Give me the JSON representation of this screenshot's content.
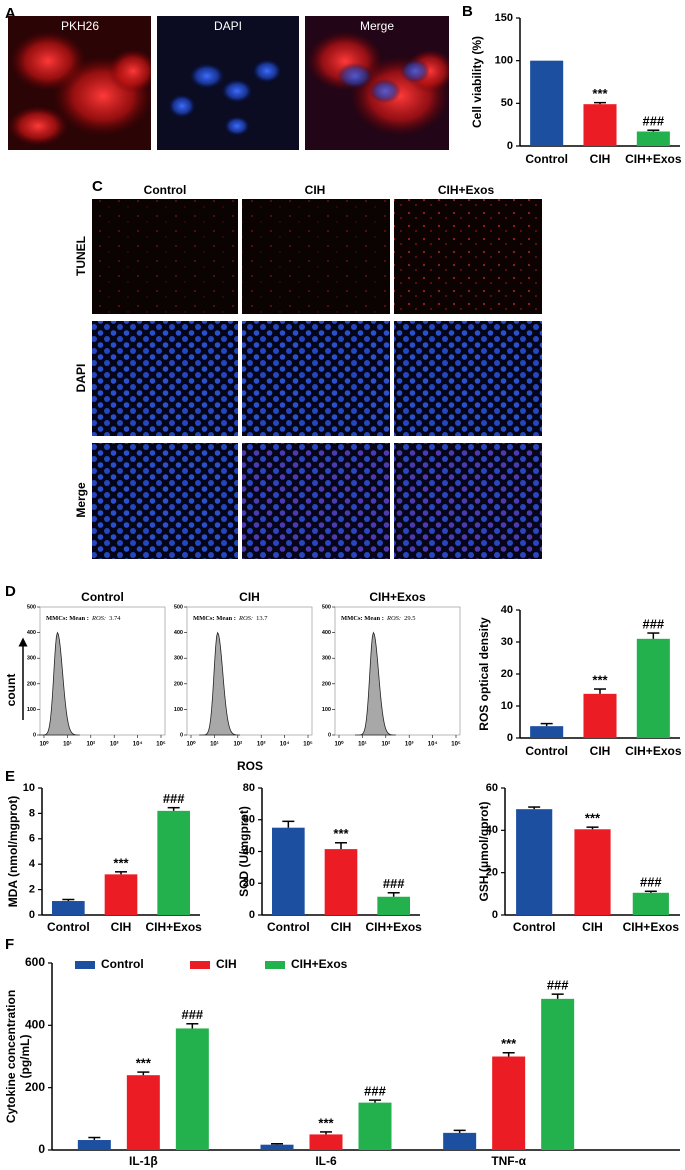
{
  "panel_labels": [
    "A",
    "B",
    "C",
    "D",
    "E",
    "F"
  ],
  "figure_a": {
    "labels": [
      "PKH26",
      "DAPI",
      "Merge"
    ]
  },
  "figure_c": {
    "columns": [
      "Control",
      "CIH",
      "CIH+Exos"
    ],
    "rows": [
      "TUNEL",
      "DAPI",
      "Merge"
    ]
  },
  "figure_d": {
    "xlabel": "ROS",
    "ylabel": "count"
  },
  "chart_data": [
    {
      "type": "bar",
      "ylabel": "Cell viability (%)",
      "categories": [
        "Control",
        "CIH",
        "CIH+Exos"
      ],
      "values": [
        100,
        49,
        17
      ],
      "errors": [
        null,
        1.8,
        1.5
      ],
      "colors": [
        "#1d4fa0",
        "#ec1c24",
        "#22b14c"
      ],
      "annotations": [
        null,
        "***",
        "###"
      ],
      "ylim": [
        0,
        150
      ],
      "yticks": [
        0,
        50,
        100,
        150
      ]
    },
    {
      "type": "flow",
      "title": "Control",
      "annotation": [
        "MMCs: Mean :",
        "ROS:"
      ],
      "mean": 3.74,
      "xlim": [
        1,
        100000
      ],
      "xticks": [
        {
          "value": 1,
          "label": "10⁰"
        },
        {
          "value": 10,
          "label": "10¹"
        },
        {
          "value": 100,
          "label": "10²"
        },
        {
          "value": 1000,
          "label": "10³"
        },
        {
          "value": 10000,
          "label": "10⁴"
        },
        {
          "value": 100000,
          "label": "10⁵"
        }
      ],
      "ylim": [
        0,
        500
      ],
      "yticks": [
        0,
        100,
        200,
        300,
        400,
        500
      ]
    },
    {
      "type": "flow",
      "title": "CIH",
      "annotation": [
        "MMCs: Mean :",
        "ROS:"
      ],
      "mean": 13.7,
      "xlim": [
        1,
        100000
      ],
      "xticks": [
        {
          "value": 1,
          "label": "10⁰"
        },
        {
          "value": 10,
          "label": "10¹"
        },
        {
          "value": 100,
          "label": "10²"
        },
        {
          "value": 1000,
          "label": "10³"
        },
        {
          "value": 10000,
          "label": "10⁴"
        },
        {
          "value": 100000,
          "label": "10⁵"
        }
      ],
      "ylim": [
        0,
        500
      ],
      "yticks": [
        0,
        100,
        200,
        300,
        400,
        500
      ]
    },
    {
      "type": "flow",
      "title": "CIH+Exos",
      "annotation": [
        "MMCs: Mean :",
        "ROS:"
      ],
      "mean": 29.5,
      "xlim": [
        1,
        100000
      ],
      "xticks": [
        {
          "value": 1,
          "label": "10⁰"
        },
        {
          "value": 10,
          "label": "10¹"
        },
        {
          "value": 100,
          "label": "10²"
        },
        {
          "value": 1000,
          "label": "10³"
        },
        {
          "value": 10000,
          "label": "10⁴"
        },
        {
          "value": 100000,
          "label": "10⁵"
        }
      ],
      "ylim": [
        0,
        500
      ],
      "yticks": [
        0,
        100,
        200,
        300,
        400,
        500
      ]
    },
    {
      "type": "bar",
      "ylabel": "ROS optical density",
      "categories": [
        "Control",
        "CIH",
        "CIH+Exos"
      ],
      "values": [
        3.7,
        13.8,
        31
      ],
      "errors": [
        0.8,
        1.5,
        1.8
      ],
      "colors": [
        "#1d4fa0",
        "#ec1c24",
        "#22b14c"
      ],
      "annotations": [
        null,
        "***",
        "###"
      ],
      "ylim": [
        0,
        40
      ],
      "yticks": [
        0,
        10,
        20,
        30,
        40
      ]
    },
    {
      "type": "bar",
      "ylabel": "MDA (nmol/mgprot)",
      "categories": [
        "Control",
        "CIH",
        "CIH+Exos"
      ],
      "values": [
        1.1,
        3.2,
        8.2
      ],
      "errors": [
        0.12,
        0.2,
        0.25
      ],
      "colors": [
        "#1d4fa0",
        "#ec1c24",
        "#22b14c"
      ],
      "annotations": [
        null,
        "***",
        "###"
      ],
      "ylim": [
        0,
        10
      ],
      "yticks": [
        0,
        2,
        4,
        6,
        8,
        10
      ]
    },
    {
      "type": "bar",
      "ylabel": "SOD (U/mgprot)",
      "categories": [
        "Control",
        "CIH",
        "CIH+Exos"
      ],
      "values": [
        55,
        41.5,
        11.5
      ],
      "errors": [
        4,
        4,
        2.5
      ],
      "colors": [
        "#1d4fa0",
        "#ec1c24",
        "#22b14c"
      ],
      "annotations": [
        null,
        "***",
        "###"
      ],
      "ylim": [
        0,
        80
      ],
      "yticks": [
        0,
        20,
        40,
        60,
        80
      ]
    },
    {
      "type": "bar",
      "ylabel": "GSH (μmol/gprot)",
      "categories": [
        "Control",
        "CIH",
        "CIH+Exos"
      ],
      "values": [
        50,
        40.5,
        10.5
      ],
      "errors": [
        1,
        1,
        0.7
      ],
      "colors": [
        "#1d4fa0",
        "#ec1c24",
        "#22b14c"
      ],
      "annotations": [
        null,
        "***",
        "###"
      ],
      "ylim": [
        0,
        60
      ],
      "yticks": [
        0,
        20,
        40,
        60
      ]
    },
    {
      "type": "grouped_bar",
      "ylabel": [
        "Cytokine concentration",
        "(pg/mL)"
      ],
      "categories": [
        "IL-1β",
        "IL-6",
        "TNF-α"
      ],
      "ylim": [
        0,
        600
      ],
      "yticks": [
        0,
        200,
        400,
        600
      ],
      "series": [
        {
          "name": "Control",
          "color": "#1d4fa0",
          "values": [
            32,
            17,
            55
          ],
          "errors": [
            8,
            3,
            8
          ],
          "annotations": [
            null,
            null,
            null
          ]
        },
        {
          "name": "CIH",
          "color": "#ec1c24",
          "values": [
            240,
            50,
            300
          ],
          "errors": [
            10,
            8,
            12
          ],
          "annotations": [
            "***",
            "***",
            "***"
          ]
        },
        {
          "name": "CIH+Exos",
          "color": "#22b14c",
          "values": [
            390,
            152,
            485
          ],
          "errors": [
            15,
            8,
            15
          ],
          "annotations": [
            "###",
            "###",
            "###"
          ]
        }
      ]
    }
  ]
}
